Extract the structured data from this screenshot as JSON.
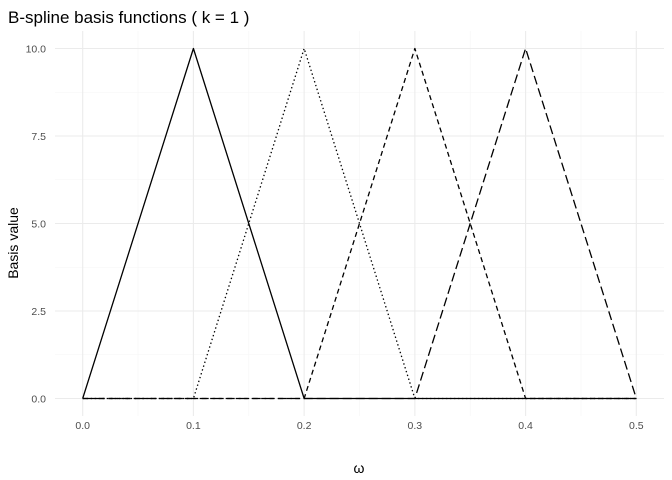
{
  "chart_data": {
    "type": "line",
    "title": "B-spline basis functions ( k = 1 )",
    "xlabel": "ω",
    "ylabel": "Basis value",
    "xlim": [
      -0.025,
      0.525
    ],
    "ylim": [
      -0.5,
      10.5
    ],
    "x_ticks": [
      0.0,
      0.1,
      0.2,
      0.3,
      0.4,
      0.5
    ],
    "x_tick_labels": [
      "0.0",
      "0.1",
      "0.2",
      "0.3",
      "0.4",
      "0.5"
    ],
    "y_ticks": [
      0.0,
      2.5,
      5.0,
      7.5,
      10.0
    ],
    "y_tick_labels": [
      "0.0",
      "2.5",
      "5.0",
      "7.5",
      "10.0"
    ],
    "x_minor_ticks": [
      0.05,
      0.15,
      0.25,
      0.35,
      0.45
    ],
    "y_minor_ticks": [
      1.25,
      3.75,
      6.25,
      8.75
    ],
    "grid": true,
    "legend": "none",
    "series": [
      {
        "line_style": "solid",
        "x": [
          0.0,
          0.1,
          0.2,
          0.5
        ],
        "y": [
          0,
          10,
          0,
          0
        ]
      },
      {
        "line_style": "dotted",
        "x": [
          0.0,
          0.1,
          0.2,
          0.3,
          0.5
        ],
        "y": [
          0,
          0,
          10,
          0,
          0
        ]
      },
      {
        "line_style": "dashed",
        "x": [
          0.0,
          0.2,
          0.3,
          0.4,
          0.5
        ],
        "y": [
          0,
          0,
          10,
          0,
          0
        ]
      },
      {
        "line_style": "longdash",
        "x": [
          0.0,
          0.3,
          0.4,
          0.5
        ],
        "y": [
          0,
          0,
          10,
          0
        ]
      }
    ]
  }
}
